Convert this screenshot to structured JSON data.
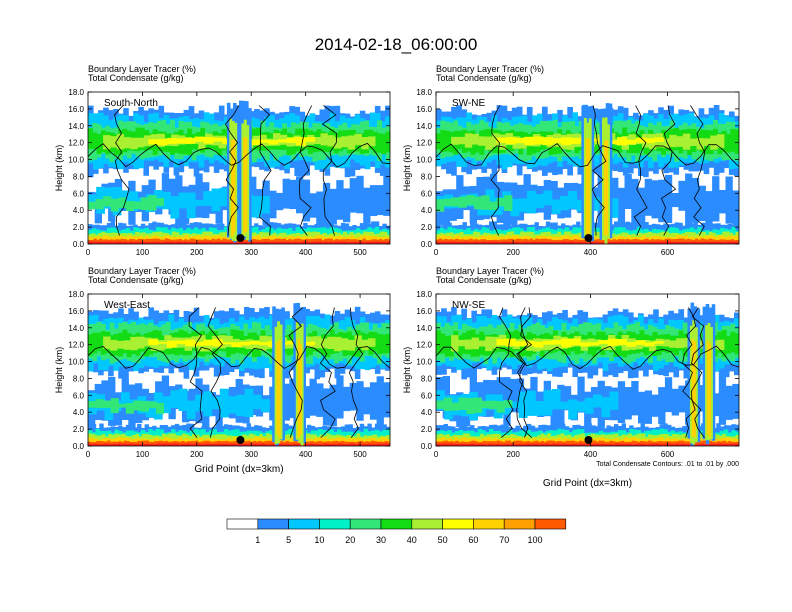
{
  "title": "2014-02-18_06:00:00",
  "subtitle_line1": "Boundary Layer Tracer   (%)",
  "subtitle_line2": "Total Condensate   (g/kg)",
  "ylabel": "Height (km)",
  "xlabel": "Grid Point (dx=3km)",
  "contour_note": "Total Condensate Contours: .01 to .01 by .000",
  "colors": {
    "white": "#ffffff",
    "c1": "#2b8cff",
    "c5": "#00c8ff",
    "c10": "#00f0c8",
    "c20": "#32e678",
    "c30": "#14dc14",
    "c40": "#aaf032",
    "c50": "#ffff00",
    "c60": "#ffd200",
    "c70": "#ffa000",
    "c80": "#ff5a00",
    "c100": "#ff1e1e",
    "marker": "#000000"
  },
  "chart_data": {
    "type": "heatmap",
    "colorbar": {
      "levels": [
        "1",
        "5",
        "10",
        "20",
        "30",
        "40",
        "50",
        "60",
        "70",
        "100"
      ],
      "unit": "%"
    },
    "panels": [
      {
        "name": "South-North",
        "xlim": [
          0,
          555
        ],
        "xticks": [
          "0",
          "100",
          "200",
          "300",
          "400",
          "500"
        ],
        "xtick_values": [
          0,
          100,
          200,
          300,
          400,
          500
        ],
        "marker_x": 280
      },
      {
        "name": "SW-NE",
        "xlim": [
          0,
          785
        ],
        "xticks": [
          "0",
          "200",
          "400",
          "600"
        ],
        "xtick_values": [
          0,
          200,
          400,
          600
        ],
        "marker_x": 395
      },
      {
        "name": "West-East",
        "xlim": [
          0,
          555
        ],
        "xticks": [
          "0",
          "100",
          "200",
          "300",
          "400",
          "500"
        ],
        "xtick_values": [
          0,
          100,
          200,
          300,
          400,
          500
        ],
        "marker_x": 280
      },
      {
        "name": "NW-SE",
        "xlim": [
          0,
          785
        ],
        "xticks": [
          "0",
          "200",
          "400",
          "600"
        ],
        "xtick_values": [
          0,
          200,
          400,
          600
        ],
        "marker_x": 395
      }
    ],
    "ylim": [
      0,
      18
    ],
    "yticks": [
      "0.0",
      "2.0",
      "4.0",
      "6.0",
      "8.0",
      "10.0",
      "12.0",
      "14.0",
      "16.0",
      "18.0"
    ],
    "ytick_values": [
      0,
      2,
      4,
      6,
      8,
      10,
      12,
      14,
      16,
      18
    ]
  }
}
